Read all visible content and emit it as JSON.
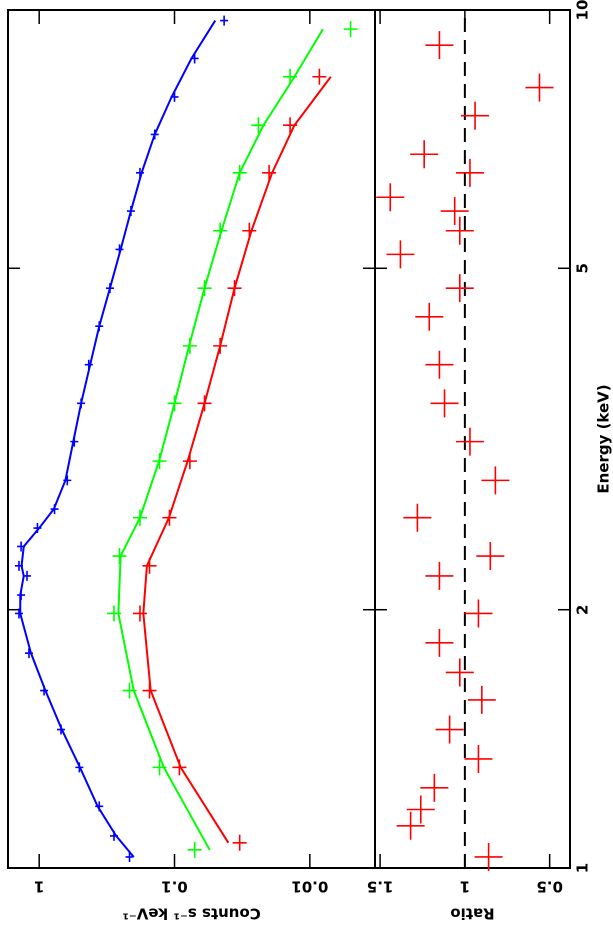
{
  "chart_data": [
    {
      "type": "scatter",
      "ylabel": "Counts s⁻¹ keV⁻¹",
      "log_x": true,
      "log_y": true,
      "xlim": [
        1,
        10
      ],
      "ylim": [
        0.0033,
        1.7
      ],
      "xticks": [
        1,
        2,
        5,
        10
      ],
      "yticks": [
        1,
        0.1,
        0.01
      ],
      "series": [
        {
          "color": "#0000ff",
          "x": [
            1.03,
            1.09,
            1.18,
            1.31,
            1.45,
            1.61,
            1.78,
            1.98,
            2.08,
            2.19,
            2.25,
            2.37,
            2.49,
            2.62,
            2.83,
            3.14,
            3.48,
            3.86,
            4.28,
            4.74,
            5.26,
            5.83,
            6.46,
            7.16,
            7.92,
            8.78,
            9.72
          ],
          "values": [
            0.215,
            0.28,
            0.36,
            0.505,
            0.69,
            0.92,
            1.19,
            1.41,
            1.36,
            1.23,
            1.41,
            1.36,
            1.03,
            0.77,
            0.62,
            0.55,
            0.49,
            0.43,
            0.36,
            0.3,
            0.255,
            0.21,
            0.18,
            0.14,
            0.1,
            0.071,
            0.043
          ],
          "model": [
            0.2,
            0.27,
            0.37,
            0.5,
            0.68,
            0.9,
            1.15,
            1.38,
            1.38,
            1.3,
            1.35,
            1.3,
            1.0,
            0.78,
            0.64,
            0.56,
            0.49,
            0.42,
            0.36,
            0.3,
            0.25,
            0.21,
            0.175,
            0.14,
            0.105,
            0.075,
            0.05
          ]
        },
        {
          "color": "#00ff00",
          "x": [
            1.05,
            1.31,
            1.61,
            1.98,
            2.31,
            2.56,
            2.98,
            3.48,
            4.06,
            4.74,
            5.53,
            6.46,
            7.34,
            8.36,
            9.5
          ],
          "values": [
            0.071,
            0.129,
            0.215,
            0.28,
            0.255,
            0.18,
            0.129,
            0.1,
            0.077,
            0.06,
            0.046,
            0.033,
            0.024,
            0.014,
            0.005
          ],
          "model": [
            0.055,
            0.12,
            0.2,
            0.26,
            0.25,
            0.18,
            0.13,
            0.1,
            0.078,
            0.06,
            0.045,
            0.033,
            0.022,
            0.013,
            0.008
          ]
        },
        {
          "color": "#ff0000",
          "x": [
            1.07,
            1.31,
            1.61,
            1.98,
            2.25,
            2.56,
            2.98,
            3.48,
            4.06,
            4.74,
            5.53,
            6.46,
            7.34,
            8.36
          ],
          "values": [
            0.033,
            0.092,
            0.153,
            0.18,
            0.153,
            0.109,
            0.077,
            0.06,
            0.046,
            0.036,
            0.028,
            0.02,
            0.014,
            0.0085
          ],
          "model": [
            0.04,
            0.09,
            0.15,
            0.17,
            0.16,
            0.11,
            0.08,
            0.06,
            0.046,
            0.036,
            0.027,
            0.019,
            0.013,
            0.007
          ]
        }
      ]
    },
    {
      "type": "scatter",
      "xlabel": "Energy (keV)",
      "ylabel": "Ratio",
      "log_x": true,
      "log_y": false,
      "xlim": [
        1,
        10
      ],
      "ylim": [
        0.38,
        1.53
      ],
      "xticks": [
        1,
        2,
        5,
        10
      ],
      "yticks": [
        0.5,
        1,
        1.5
      ],
      "reference_line": 1,
      "series": [
        {
          "color": "#ff0000",
          "x": [
            1.03,
            1.12,
            1.17,
            1.24,
            1.34,
            1.45,
            1.57,
            1.69,
            1.83,
            1.98,
            2.19,
            2.31,
            2.56,
            2.83,
            3.14,
            3.48,
            3.86,
            4.39,
            4.74,
            5.19,
            5.53,
            5.83,
            6.05,
            6.46,
            6.79,
            7.53,
            8.12,
            9.1
          ],
          "values": [
            0.86,
            1.32,
            1.26,
            1.18,
            0.92,
            1.09,
            0.9,
            1.03,
            1.15,
            0.92,
            1.15,
            0.85,
            1.28,
            0.82,
            0.97,
            1.12,
            1.15,
            1.21,
            1.03,
            1.38,
            1.03,
            1.06,
            1.44,
            0.97,
            1.24,
            0.94,
            0.56,
            1.15
          ]
        }
      ]
    }
  ]
}
